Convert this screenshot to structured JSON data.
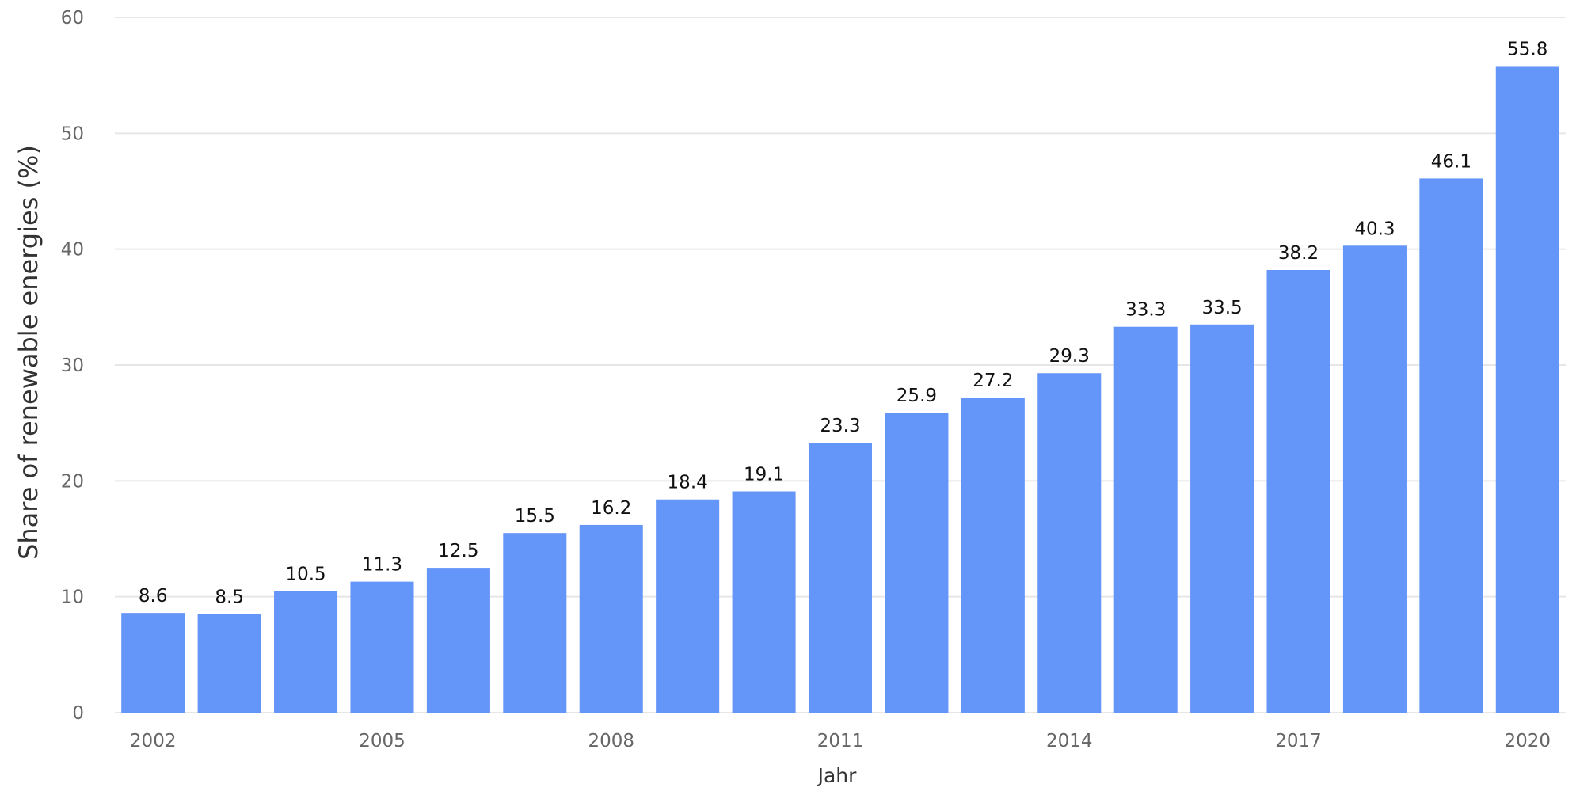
{
  "chart_data": {
    "type": "bar",
    "categories": [
      "2002",
      "2003",
      "2004",
      "2005",
      "2006",
      "2007",
      "2008",
      "2009",
      "2010",
      "2011",
      "2012",
      "2013",
      "2014",
      "2015",
      "2016",
      "2017",
      "2018",
      "2019",
      "2020"
    ],
    "values": [
      8.6,
      8.5,
      10.5,
      11.3,
      12.5,
      15.5,
      16.2,
      18.4,
      19.1,
      23.3,
      25.9,
      27.2,
      29.3,
      33.3,
      33.5,
      38.2,
      40.3,
      46.1,
      55.8
    ],
    "value_labels": [
      "8.6",
      "8.5",
      "10.5",
      "11.3",
      "12.5",
      "15.5",
      "16.2",
      "18.4",
      "19.1",
      "23.3",
      "25.9",
      "27.2",
      "29.3",
      "33.3",
      "33.5",
      "38.2",
      "40.3",
      "46.1",
      "55.8"
    ],
    "x_tick_labels": [
      "2002",
      "2005",
      "2008",
      "2011",
      "2014",
      "2017",
      "2020"
    ],
    "y_ticks": [
      "0",
      "10",
      "20",
      "30",
      "40",
      "50",
      "60"
    ],
    "xlabel": "Jahr",
    "ylabel": "Share of renewable energies (%)",
    "ylim": [
      0,
      60
    ],
    "grid": true,
    "bar_color": "#6495f8",
    "grid_color": "#e6e6e6"
  }
}
